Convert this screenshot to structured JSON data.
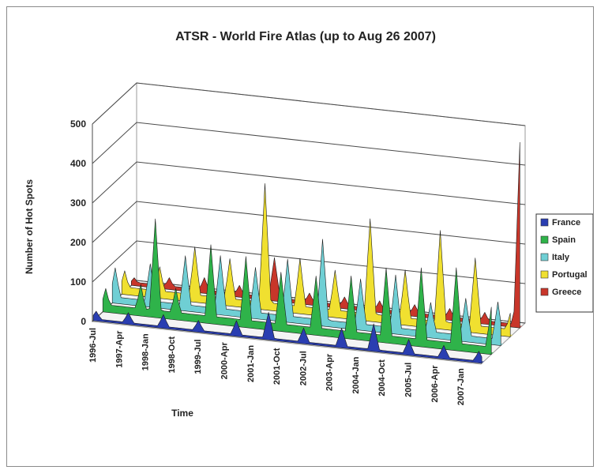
{
  "chart_data": {
    "type": "area",
    "title": "ATSR - World Fire Atlas (up to Aug 26 2007)",
    "ylabel": "Number of Hot Spots",
    "xlabel": "Time",
    "ylim": [
      0,
      500
    ],
    "yticks": [
      "0",
      "100",
      "200",
      "300",
      "400",
      "500"
    ],
    "x_tick_labels": [
      "1996-Jul",
      "1997-Apr",
      "1998-Jan",
      "1998-Oct",
      "1999-Jul",
      "2000-Apr",
      "2001-Jan",
      "2001-Oct",
      "2002-Jul",
      "2003-Apr",
      "2004-Jan",
      "2004-Oct",
      "2005-Jul",
      "2006-Apr",
      "2007-Jan"
    ],
    "legend_position": "right",
    "grid": true,
    "series": [
      {
        "name": "France",
        "color": "#2a3eb1",
        "peaks": [
          [
            "1996-Aug",
            25
          ],
          [
            "1997-Jul",
            30
          ],
          [
            "1998-Jul",
            35
          ],
          [
            "1999-Jul",
            30
          ],
          [
            "2000-Aug",
            40
          ],
          [
            "2001-Jul",
            70
          ],
          [
            "2002-Jul",
            40
          ],
          [
            "2003-Aug",
            50
          ],
          [
            "2004-Jul",
            70
          ],
          [
            "2005-Jul",
            40
          ],
          [
            "2006-Jul",
            35
          ],
          [
            "2007-Jul",
            30
          ]
        ]
      },
      {
        "name": "Spain",
        "color": "#2fb34a",
        "peaks": [
          [
            "1996-Aug",
            60
          ],
          [
            "1997-Aug",
            80
          ],
          [
            "1998-Jan",
            250
          ],
          [
            "1998-Aug",
            80
          ],
          [
            "1999-Aug",
            200
          ],
          [
            "2000-Aug",
            180
          ],
          [
            "2001-Aug",
            150
          ],
          [
            "2002-Aug",
            150
          ],
          [
            "2003-Aug",
            160
          ],
          [
            "2004-Aug",
            190
          ],
          [
            "2005-Aug",
            200
          ],
          [
            "2006-Aug",
            210
          ],
          [
            "2007-Aug",
            120
          ]
        ]
      },
      {
        "name": "Italy",
        "color": "#6fcfd4",
        "peaks": [
          [
            "1996-Aug",
            90
          ],
          [
            "1997-Aug",
            110
          ],
          [
            "1998-Aug",
            140
          ],
          [
            "1999-Aug",
            150
          ],
          [
            "2000-Aug",
            130
          ],
          [
            "2001-Jul",
            160
          ],
          [
            "2002-Jul",
            220
          ],
          [
            "2003-Aug",
            130
          ],
          [
            "2004-Aug",
            150
          ],
          [
            "2005-Aug",
            90
          ],
          [
            "2006-Aug",
            110
          ],
          [
            "2007-Jul",
            110
          ]
        ]
      },
      {
        "name": "Portugal",
        "color": "#f0e030",
        "peaks": [
          [
            "1996-Aug",
            60
          ],
          [
            "1997-Aug",
            80
          ],
          [
            "1998-Aug",
            140
          ],
          [
            "1999-Aug",
            120
          ],
          [
            "2000-Aug",
            320
          ],
          [
            "2001-Aug",
            140
          ],
          [
            "2002-Aug",
            120
          ],
          [
            "2003-Aug",
            260
          ],
          [
            "2004-Aug",
            140
          ],
          [
            "2005-Aug",
            250
          ],
          [
            "2006-Aug",
            190
          ],
          [
            "2007-Aug",
            60
          ]
        ]
      },
      {
        "name": "Greece",
        "color": "#c8362a",
        "peaks": [
          [
            "1996-Aug",
            20
          ],
          [
            "1997-Aug",
            30
          ],
          [
            "1998-Aug",
            40
          ],
          [
            "1999-Aug",
            30
          ],
          [
            "2000-Aug",
            110
          ],
          [
            "2001-Aug",
            30
          ],
          [
            "2002-Aug",
            30
          ],
          [
            "2003-Aug",
            30
          ],
          [
            "2004-Aug",
            30
          ],
          [
            "2005-Aug",
            30
          ],
          [
            "2006-Aug",
            30
          ],
          [
            "2007-Aug",
            470
          ]
        ]
      }
    ]
  }
}
